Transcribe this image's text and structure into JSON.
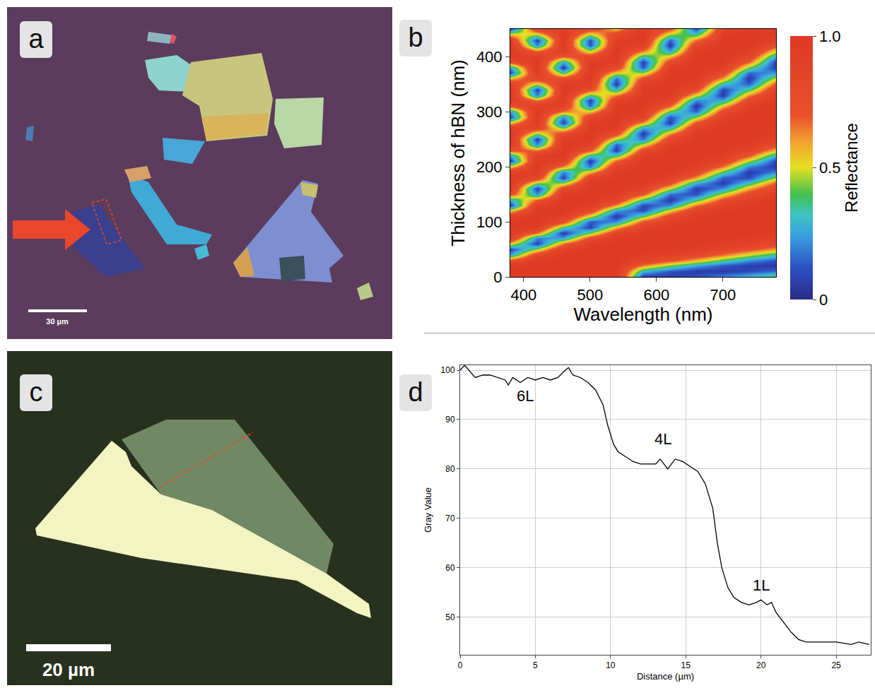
{
  "chart_data": [
    {
      "type": "image",
      "panel": "a",
      "scale_bar": "30 µm"
    },
    {
      "type": "heatmap",
      "panel": "b",
      "x_label": "Wavelength (nm)",
      "y_label": "Thickness of hBN (nm)",
      "x": [
        380,
        420,
        460,
        500,
        540,
        580,
        620,
        660,
        700,
        740,
        780
      ],
      "y": [
        0,
        10,
        20,
        30,
        40,
        50,
        60,
        70,
        80,
        90,
        100,
        110,
        120,
        130,
        140,
        150,
        160,
        170,
        180,
        190,
        200,
        210,
        220,
        230,
        240,
        250,
        260,
        270,
        280,
        290,
        300,
        310,
        320,
        330,
        340,
        350,
        360,
        370,
        380,
        390,
        400,
        410,
        420,
        430,
        440,
        450
      ],
      "cells": [
        [
          0.99,
          0.99,
          0.99,
          0.99,
          0.99,
          0.06,
          0.06,
          0.12,
          0.21,
          0.31,
          0.42
        ],
        [
          0.99,
          0.99,
          0.99,
          0.99,
          0.99,
          0.29,
          0.13,
          0.06,
          0.06,
          0.1,
          0.17
        ],
        [
          0.96,
          0.99,
          0.99,
          0.99,
          0.99,
          0.63,
          0.42,
          0.25,
          0.13,
          0.06,
          0.05
        ],
        [
          0.75,
          0.97,
          0.99,
          0.99,
          0.99,
          0.87,
          0.72,
          0.56,
          0.37,
          0.21,
          0.12
        ],
        [
          0.25,
          0.84,
          0.99,
          0.99,
          0.99,
          0.96,
          0.9,
          0.8,
          0.65,
          0.48,
          0.33
        ],
        [
          0.09,
          0.46,
          0.92,
          0.99,
          0.99,
          0.99,
          0.97,
          0.94,
          0.85,
          0.73,
          0.59
        ],
        [
          0.54,
          0.08,
          0.66,
          0.95,
          0.99,
          0.99,
          0.99,
          0.98,
          0.95,
          0.88,
          0.79
        ],
        [
          0.91,
          0.2,
          0.24,
          0.77,
          0.96,
          0.99,
          0.99,
          0.99,
          0.98,
          0.95,
          0.92
        ],
        [
          0.99,
          0.66,
          0.06,
          0.42,
          0.85,
          0.98,
          0.99,
          0.99,
          0.99,
          0.99,
          0.97
        ],
        [
          0.99,
          0.93,
          0.37,
          0.09,
          0.57,
          0.91,
          0.98,
          0.99,
          0.99,
          0.99,
          0.99
        ],
        [
          0.99,
          0.99,
          0.77,
          0.13,
          0.21,
          0.72,
          0.93,
          0.99,
          0.99,
          0.99,
          0.99
        ],
        [
          0.9,
          0.99,
          0.95,
          0.5,
          0.05,
          0.39,
          0.79,
          0.96,
          0.99,
          0.99,
          0.99
        ],
        [
          0.52,
          0.99,
          0.99,
          0.82,
          0.24,
          0.1,
          0.52,
          0.87,
          0.97,
          0.99,
          0.99
        ],
        [
          0.08,
          0.93,
          0.99,
          0.96,
          0.6,
          0.09,
          0.21,
          0.66,
          0.9,
          0.97,
          0.99
        ],
        [
          0.27,
          0.68,
          0.99,
          0.99,
          0.86,
          0.37,
          0.05,
          0.36,
          0.74,
          0.93,
          0.98
        ],
        [
          0.76,
          0.22,
          0.96,
          0.99,
          0.96,
          0.71,
          0.17,
          0.11,
          0.49,
          0.8,
          0.95
        ],
        [
          0.96,
          0.07,
          0.81,
          0.99,
          0.99,
          0.9,
          0.48,
          0.07,
          0.21,
          0.59,
          0.86
        ],
        [
          0.99,
          0.44,
          0.43,
          0.97,
          0.99,
          0.97,
          0.76,
          0.28,
          0.06,
          0.33,
          0.7
        ],
        [
          0.99,
          0.83,
          0.08,
          0.87,
          0.99,
          0.99,
          0.92,
          0.59,
          0.13,
          0.11,
          0.46
        ],
        [
          0.9,
          0.97,
          0.19,
          0.58,
          0.97,
          0.99,
          0.98,
          0.81,
          0.37,
          0.06,
          0.21
        ],
        [
          0.53,
          0.99,
          0.62,
          0.19,
          0.9,
          0.99,
          0.99,
          0.94,
          0.65,
          0.2,
          0.06
        ],
        [
          0.08,
          0.99,
          0.9,
          0.06,
          0.69,
          0.99,
          0.99,
          0.98,
          0.85,
          0.46,
          0.09
        ],
        [
          0.25,
          0.93,
          0.98,
          0.34,
          0.34,
          0.94,
          0.99,
          0.99,
          0.95,
          0.71,
          0.29
        ],
        [
          0.75,
          0.66,
          0.99,
          0.72,
          0.07,
          0.79,
          0.99,
          0.99,
          0.98,
          0.87,
          0.55
        ],
        [
          0.96,
          0.21,
          0.99,
          0.93,
          0.14,
          0.5,
          0.95,
          0.99,
          0.99,
          0.95,
          0.77
        ],
        [
          0.99,
          0.07,
          0.96,
          0.99,
          0.47,
          0.17,
          0.84,
          0.99,
          0.99,
          0.98,
          0.9
        ],
        [
          0.99,
          0.45,
          0.79,
          0.99,
          0.78,
          0.06,
          0.6,
          0.97,
          0.99,
          0.99,
          0.96
        ],
        [
          0.91,
          0.83,
          0.4,
          0.99,
          0.94,
          0.26,
          0.29,
          0.9,
          0.99,
          0.99,
          0.99
        ],
        [
          0.55,
          0.97,
          0.07,
          0.96,
          0.99,
          0.6,
          0.07,
          0.73,
          0.97,
          0.99,
          0.99
        ],
        [
          0.09,
          0.99,
          0.21,
          0.85,
          0.99,
          0.86,
          0.11,
          0.44,
          0.92,
          0.99,
          0.99
        ],
        [
          0.24,
          0.99,
          0.64,
          0.54,
          0.99,
          0.96,
          0.39,
          0.15,
          0.78,
          0.98,
          0.99
        ],
        [
          0.74,
          0.93,
          0.91,
          0.16,
          0.97,
          0.99,
          0.69,
          0.05,
          0.55,
          0.94,
          0.99
        ],
        [
          0.96,
          0.65,
          0.98,
          0.08,
          0.89,
          0.99,
          0.89,
          0.21,
          0.26,
          0.82,
          0.98
        ],
        [
          0.99,
          0.2,
          0.99,
          0.38,
          0.64,
          0.99,
          0.97,
          0.51,
          0.07,
          0.63,
          0.95
        ],
        [
          0.99,
          0.08,
          0.99,
          0.75,
          0.29,
          0.98,
          0.99,
          0.77,
          0.09,
          0.37,
          0.88
        ],
        [
          0.91,
          0.47,
          0.95,
          0.94,
          0.06,
          0.93,
          0.99,
          0.92,
          0.32,
          0.14,
          0.72
        ],
        [
          0.55,
          0.85,
          0.76,
          0.99,
          0.17,
          0.75,
          0.99,
          0.98,
          0.6,
          0.05,
          0.49
        ],
        [
          0.09,
          0.97,
          0.35,
          0.99,
          0.52,
          0.44,
          0.98,
          0.99,
          0.81,
          0.16,
          0.23
        ],
        [
          0.24,
          0.99,
          0.06,
          0.99,
          0.81,
          0.13,
          0.94,
          0.99,
          0.94,
          0.41,
          0.07
        ],
        [
          0.74,
          0.99,
          0.26,
          0.95,
          0.95,
          0.07,
          0.8,
          0.99,
          0.98,
          0.67,
          0.08
        ],
        [
          0.96,
          0.93,
          0.69,
          0.8,
          0.99,
          0.33,
          0.55,
          0.99,
          0.99,
          0.85,
          0.26
        ],
        [
          0.99,
          0.65,
          0.93,
          0.46,
          0.99,
          0.66,
          0.23,
          0.96,
          0.99,
          0.95,
          0.52
        ],
        [
          0.99,
          0.2,
          0.99,
          0.11,
          0.99,
          0.89,
          0.06,
          0.86,
          0.99,
          0.98,
          0.75
        ],
        [
          0.91,
          0.08,
          0.99,
          0.11,
          0.95,
          0.97,
          0.15,
          0.66,
          0.99,
          0.99,
          0.9
        ],
        [
          0.55,
          0.47,
          0.99,
          0.46,
          0.83,
          0.99,
          0.45,
          0.35,
          0.96,
          0.99,
          0.96
        ],
        [
          0.09,
          0.85,
          0.95,
          0.8,
          0.55,
          0.99,
          0.74,
          0.1,
          0.89,
          0.99,
          0.99
        ]
      ],
      "xlim": [
        380,
        780
      ],
      "ylim": [
        0,
        450
      ],
      "xticks": [
        400,
        500,
        600,
        700
      ],
      "yticks": [
        0,
        100,
        200,
        300,
        400
      ],
      "colorbar": {
        "title": "Reflectance",
        "range": [
          0,
          1
        ],
        "ticks": [
          0,
          0.5,
          {
            "value": 1,
            "label": "1.0"
          }
        ]
      }
    },
    {
      "type": "image",
      "panel": "c",
      "scale_bar": "20 µm"
    },
    {
      "type": "line",
      "panel": "d",
      "x_label": "Distance (µm)",
      "y_label": "Gray Value",
      "x": [
        0,
        0.3,
        1,
        1.5,
        2,
        2.5,
        3,
        3.2,
        3.5,
        4,
        4.5,
        5,
        5.5,
        6,
        6.5,
        7,
        7.2,
        7.5,
        8,
        8.5,
        9,
        9.5,
        9.8,
        10.2,
        10.5,
        11,
        11.5,
        12,
        12.5,
        13,
        13.3,
        13.8,
        14.3,
        14.8,
        15.3,
        15.8,
        16.3,
        16.8,
        17.1,
        17.4,
        17.8,
        18.2,
        18.7,
        19.2,
        19.7,
        20,
        20.4,
        20.7,
        21,
        21.5,
        22,
        22.5,
        23,
        24,
        25,
        26,
        26.5,
        27.2
      ],
      "values": [
        100,
        101,
        98.5,
        99,
        99,
        98.5,
        98,
        97,
        98.5,
        97.5,
        98.5,
        98,
        98.5,
        98,
        98.5,
        100,
        100.5,
        99,
        98.5,
        97.5,
        96,
        93,
        89,
        85,
        83.5,
        82.5,
        81.5,
        81,
        81,
        81,
        82,
        80,
        82,
        81.5,
        80.5,
        79.5,
        77,
        72,
        65,
        60,
        56,
        54,
        53,
        52.5,
        53,
        53.5,
        52.5,
        53,
        51,
        49,
        47,
        45.5,
        45,
        45,
        45,
        44.5,
        45,
        44.5
      ],
      "color": "#000000",
      "xlim": [
        0,
        27.3
      ],
      "ylim": [
        42.4,
        101
      ],
      "xticks": [
        0,
        5,
        10,
        15,
        20,
        25
      ],
      "yticks": [
        50,
        60,
        70,
        80,
        90,
        100
      ],
      "grid": true,
      "annotations": [
        {
          "text": "6L",
          "x": 4.3,
          "y": 94.8
        },
        {
          "text": "4L",
          "x": 13.5,
          "y": 86
        },
        {
          "text": "1L",
          "x": 20,
          "y": 56.5
        }
      ]
    }
  ]
}
